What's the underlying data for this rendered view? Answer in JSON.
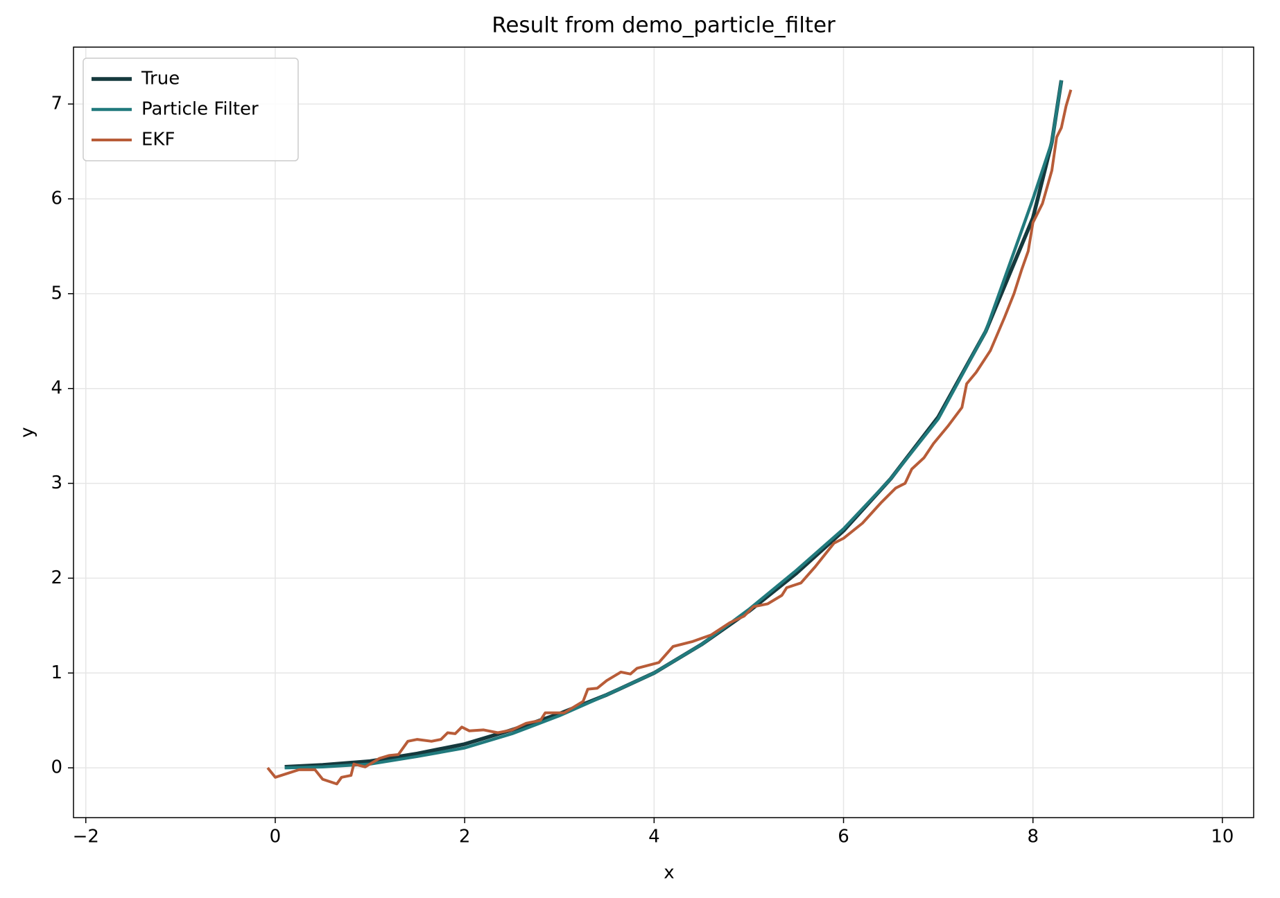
{
  "chart_data": {
    "type": "line",
    "title": "Result from demo_particle_filter",
    "xlabel": "x",
    "ylabel": "y",
    "xlim": [
      -2.13,
      10.33
    ],
    "ylim": [
      -0.525,
      7.6
    ],
    "xticks": [
      {
        "value": -2,
        "label": "−2"
      },
      0,
      2,
      4,
      6,
      8,
      10
    ],
    "yticks": [
      0,
      1,
      2,
      3,
      4,
      5,
      6,
      7
    ],
    "grid": true,
    "legend": "upper left",
    "series": [
      {
        "name": "True",
        "color": "#15393d",
        "width": 5.5,
        "x": [
          0.1,
          0.5,
          1,
          1.5,
          2,
          2.5,
          3,
          3.5,
          4,
          4.5,
          5,
          5.5,
          6,
          6.5,
          7,
          7.5,
          8,
          8.2,
          8.3
        ],
        "values": [
          0.01,
          0.03,
          0.07,
          0.15,
          0.25,
          0.4,
          0.57,
          0.77,
          1.0,
          1.3,
          1.65,
          2.05,
          2.5,
          3.05,
          3.7,
          4.6,
          5.8,
          6.6,
          7.25
        ]
      },
      {
        "name": "Particle Filter",
        "color": "#217a7d",
        "width": 4.5,
        "x": [
          0.1,
          0.5,
          1,
          1.5,
          2,
          2.5,
          3,
          3.5,
          4,
          4.5,
          5,
          5.5,
          6,
          6.5,
          7,
          7.5,
          8,
          8.2,
          8.3
        ],
        "values": [
          0,
          0.01,
          0.04,
          0.12,
          0.21,
          0.36,
          0.55,
          0.77,
          1.0,
          1.3,
          1.67,
          2.08,
          2.52,
          3.05,
          3.68,
          4.6,
          6.0,
          6.6,
          7.25
        ]
      },
      {
        "name": "EKF",
        "color": "#b85c38",
        "width": 4,
        "x": [
          -0.08,
          0,
          0.25,
          0.42,
          0.5,
          0.65,
          0.7,
          0.8,
          0.83,
          0.95,
          1.1,
          1.2,
          1.3,
          1.4,
          1.5,
          1.65,
          1.75,
          1.82,
          1.9,
          1.97,
          2.05,
          2.2,
          2.35,
          2.5,
          2.65,
          2.8,
          2.85,
          3.05,
          3.25,
          3.3,
          3.4,
          3.5,
          3.65,
          3.75,
          3.82,
          4.05,
          4.2,
          4.4,
          4.6,
          4.8,
          4.95,
          5.05,
          5.2,
          5.35,
          5.4,
          5.55,
          5.7,
          5.9,
          6.0,
          6.2,
          6.4,
          6.55,
          6.65,
          6.72,
          6.85,
          6.95,
          7.1,
          7.25,
          7.3,
          7.4,
          7.55,
          7.7,
          7.8,
          7.88,
          7.95,
          8.0,
          8.1,
          8.2,
          8.25,
          8.3,
          8.35,
          8.4
        ],
        "values": [
          0,
          -0.1,
          -0.02,
          -0.02,
          -0.12,
          -0.17,
          -0.1,
          -0.08,
          0.04,
          0.01,
          0.1,
          0.13,
          0.14,
          0.28,
          0.3,
          0.28,
          0.3,
          0.37,
          0.36,
          0.43,
          0.39,
          0.4,
          0.37,
          0.4,
          0.47,
          0.5,
          0.58,
          0.58,
          0.7,
          0.83,
          0.84,
          0.92,
          1.01,
          0.99,
          1.05,
          1.11,
          1.28,
          1.33,
          1.4,
          1.53,
          1.6,
          1.7,
          1.73,
          1.82,
          1.9,
          1.95,
          2.12,
          2.37,
          2.42,
          2.58,
          2.8,
          2.95,
          3.0,
          3.15,
          3.27,
          3.42,
          3.6,
          3.8,
          4.05,
          4.17,
          4.4,
          4.75,
          5.0,
          5.25,
          5.45,
          5.75,
          5.95,
          6.3,
          6.65,
          6.75,
          6.98,
          7.15
        ]
      }
    ]
  }
}
